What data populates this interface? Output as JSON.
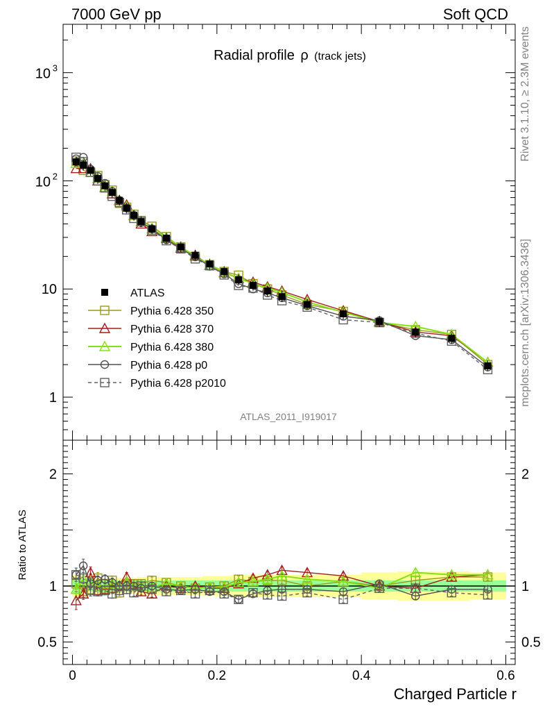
{
  "header": {
    "left": "7000 GeV pp",
    "right": "Soft QCD"
  },
  "side": {
    "top": "Rivet 3.1.10, ≥ 2.3M events",
    "bottom": "mcplots.cern.ch [arXiv:1306.3436]"
  },
  "analysis_tag": "ATLAS_2011_I919017",
  "chart_data": [
    {
      "type": "line",
      "title": "Radial profile ρ (track jets)",
      "title_main": "Radial profile",
      "title_rho": "ρ",
      "title_sub": "(track jets)",
      "xlabel": "Charged Particle r",
      "ylabel": "",
      "log_y": true,
      "xlim": [
        -0.013,
        0.613
      ],
      "ylim": [
        0.4,
        2800
      ],
      "x_ticks": [
        "0",
        "0.2",
        "0.4",
        "0.6"
      ],
      "y_ticks": [
        "1",
        "10",
        "10²",
        "10³"
      ],
      "legend_position": "left-middle",
      "x": [
        0.005,
        0.015,
        0.025,
        0.035,
        0.045,
        0.055,
        0.065,
        0.075,
        0.085,
        0.095,
        0.11,
        0.13,
        0.15,
        0.17,
        0.19,
        0.21,
        0.23,
        0.25,
        0.27,
        0.29,
        0.325,
        0.375,
        0.425,
        0.475,
        0.525,
        0.575
      ],
      "series": [
        {
          "name": "ATLAS",
          "color": "#000000",
          "marker": "filled-square",
          "values": [
            150,
            140,
            125,
            105,
            90,
            78,
            66,
            56,
            48,
            42,
            36,
            29.5,
            24.5,
            20.5,
            17,
            14.5,
            12.2,
            10.8,
            9.6,
            8.5,
            7.2,
            5.9,
            5.0,
            4.0,
            3.5,
            1.95
          ]
        },
        {
          "name": "Pythia 6.428 350",
          "color": "#9a9a1e",
          "marker": "open-square",
          "values": [
            152,
            125,
            120,
            112,
            92,
            82,
            62,
            57,
            49,
            43,
            38,
            30.5,
            24.5,
            20,
            16.8,
            14.5,
            13.4,
            11.2,
            10.0,
            8.8,
            7.2,
            6.2,
            4.9,
            4.2,
            3.8,
            2.0
          ]
        },
        {
          "name": "Pythia 6.428 370",
          "color": "#a51c1c",
          "marker": "open-triangle",
          "values": [
            130,
            130,
            130,
            100,
            87,
            76,
            66,
            60,
            48,
            40,
            34,
            29.5,
            24,
            20.5,
            16.6,
            14.2,
            12.5,
            11.6,
            10.5,
            9.6,
            8.0,
            6.3,
            5.0,
            4.0,
            3.7,
            2.1
          ]
        },
        {
          "name": "Pythia 6.428 380",
          "color": "#86e016",
          "marker": "open-triangle",
          "values": [
            145,
            145,
            120,
            105,
            88,
            80,
            65,
            58,
            48,
            42,
            36,
            30,
            24.5,
            20,
            16.8,
            14.3,
            12.6,
            11.2,
            10.2,
            9.3,
            7.6,
            6.1,
            4.9,
            4.5,
            3.8,
            2.1
          ]
        },
        {
          "name": "Pythia 6.428 p0",
          "color": "#505050",
          "marker": "open-circle",
          "values": [
            160,
            165,
            128,
            110,
            95,
            80,
            66,
            56,
            48,
            41,
            36,
            28.5,
            23.5,
            19.8,
            16.2,
            13.8,
            11.2,
            10.0,
            9.2,
            8.3,
            7.0,
            5.6,
            5.1,
            3.7,
            3.4,
            1.9
          ]
        },
        {
          "name": "Pythia 6.428 p2010",
          "color": "#606060",
          "marker": "open-square",
          "dashed": true,
          "values": [
            165,
            150,
            120,
            100,
            86,
            72,
            63,
            54,
            45,
            42,
            35,
            28,
            23.5,
            19.0,
            16.4,
            13.5,
            10.8,
            10.2,
            8.8,
            7.8,
            6.8,
            5.2,
            4.9,
            3.9,
            3.3,
            1.8
          ]
        }
      ]
    },
    {
      "type": "line",
      "ylabel": "Ratio to ATLAS",
      "xlabel": "Charged Particle r",
      "ylim": [
        0.3,
        2.3
      ],
      "x_ticks": [
        "0",
        "0.2",
        "0.4",
        "0.6"
      ],
      "y_ticks": [
        "0.5",
        "1",
        "2"
      ],
      "band_x_edges": [
        0.0,
        0.01,
        0.02,
        0.03,
        0.04,
        0.05,
        0.06,
        0.07,
        0.08,
        0.09,
        0.1,
        0.12,
        0.14,
        0.16,
        0.18,
        0.2,
        0.22,
        0.24,
        0.26,
        0.28,
        0.3,
        0.35,
        0.4,
        0.45,
        0.5,
        0.55,
        0.6
      ],
      "band_inner": [
        0.07,
        0.06,
        0.05,
        0.05,
        0.05,
        0.05,
        0.05,
        0.05,
        0.05,
        0.05,
        0.05,
        0.05,
        0.05,
        0.05,
        0.05,
        0.05,
        0.05,
        0.05,
        0.05,
        0.05,
        0.05,
        0.05,
        0.05,
        0.05,
        0.05,
        0.05
      ],
      "band_outer": [
        0.1,
        0.08,
        0.07,
        0.07,
        0.07,
        0.07,
        0.07,
        0.07,
        0.07,
        0.08,
        0.08,
        0.08,
        0.08,
        0.08,
        0.09,
        0.09,
        0.1,
        0.1,
        0.1,
        0.1,
        0.1,
        0.1,
        0.12,
        0.13,
        0.13,
        0.12
      ],
      "series": [
        {
          "name": "Pythia 6.428 350",
          "values": [
            1.02,
            0.95,
            0.97,
            1.07,
            1.02,
            1.05,
            0.94,
            1.02,
            1.02,
            1.02,
            1.05,
            1.03,
            1.0,
            0.98,
            0.99,
            1.0,
            1.06,
            1.04,
            1.05,
            1.05,
            1.0,
            1.04,
            1.0,
            1.05,
            1.08,
            1.08
          ],
          "errors": [
            0.05,
            0.05,
            0.05,
            0.05,
            0.04,
            0.04,
            0.04,
            0.04,
            0.03,
            0.03,
            0.03,
            0.03,
            0.03,
            0.03,
            0.03,
            0.03,
            0.03,
            0.03,
            0.03,
            0.03,
            0.03,
            0.03,
            0.03,
            0.03,
            0.03,
            0.03
          ]
        },
        {
          "name": "Pythia 6.428 370",
          "values": [
            0.87,
            0.93,
            1.12,
            0.96,
            0.97,
            0.98,
            1.0,
            1.08,
            1.0,
            0.95,
            0.93,
            1.0,
            0.98,
            1.0,
            0.98,
            0.98,
            1.02,
            1.07,
            1.1,
            1.14,
            1.12,
            1.09,
            1.0,
            0.98,
            1.08,
            1.1
          ],
          "errors": [
            0.08,
            0.05,
            0.05,
            0.04,
            0.04,
            0.04,
            0.04,
            0.04,
            0.03,
            0.03,
            0.03,
            0.03,
            0.03,
            0.03,
            0.03,
            0.03,
            0.03,
            0.03,
            0.03,
            0.03,
            0.03,
            0.03,
            0.03,
            0.03,
            0.03,
            0.03
          ]
        },
        {
          "name": "Pythia 6.428 380",
          "values": [
            0.97,
            1.06,
            1.04,
            1.0,
            0.98,
            1.02,
            0.99,
            1.04,
            1.0,
            1.0,
            0.99,
            1.02,
            1.0,
            0.98,
            0.99,
            0.99,
            1.03,
            1.04,
            1.06,
            1.09,
            1.06,
            1.04,
            0.98,
            1.12,
            1.1,
            1.1
          ],
          "errors": [
            0.05,
            0.05,
            0.05,
            0.04,
            0.04,
            0.04,
            0.04,
            0.04,
            0.03,
            0.03,
            0.03,
            0.03,
            0.03,
            0.03,
            0.03,
            0.03,
            0.03,
            0.03,
            0.03,
            0.03,
            0.03,
            0.03,
            0.03,
            0.03,
            0.03,
            0.03
          ]
        },
        {
          "name": "Pythia 6.428 p0",
          "values": [
            1.1,
            1.18,
            1.02,
            1.05,
            1.06,
            1.03,
            1.0,
            1.0,
            1.0,
            0.98,
            1.0,
            0.97,
            0.96,
            0.97,
            0.95,
            0.95,
            0.88,
            0.93,
            0.96,
            0.97,
            0.97,
            0.95,
            1.02,
            0.91,
            0.97,
            0.97
          ],
          "errors": [
            0.06,
            0.06,
            0.05,
            0.04,
            0.04,
            0.04,
            0.04,
            0.04,
            0.03,
            0.03,
            0.03,
            0.03,
            0.03,
            0.03,
            0.03,
            0.03,
            0.03,
            0.03,
            0.03,
            0.03,
            0.03,
            0.03,
            0.03,
            0.03,
            0.03,
            0.03
          ]
        },
        {
          "name": "Pythia 6.428 p2010",
          "values": [
            1.1,
            1.07,
            0.96,
            0.95,
            0.96,
            0.93,
            0.96,
            0.97,
            0.94,
            1.0,
            0.97,
            0.95,
            0.96,
            0.93,
            0.96,
            0.93,
            0.88,
            0.94,
            0.92,
            0.91,
            0.94,
            0.88,
            0.98,
            0.98,
            0.94,
            0.92
          ],
          "errors": [
            0.06,
            0.05,
            0.05,
            0.04,
            0.04,
            0.04,
            0.04,
            0.04,
            0.03,
            0.03,
            0.03,
            0.03,
            0.03,
            0.03,
            0.03,
            0.03,
            0.03,
            0.03,
            0.03,
            0.03,
            0.03,
            0.03,
            0.03,
            0.03,
            0.03,
            0.03
          ]
        }
      ]
    }
  ]
}
